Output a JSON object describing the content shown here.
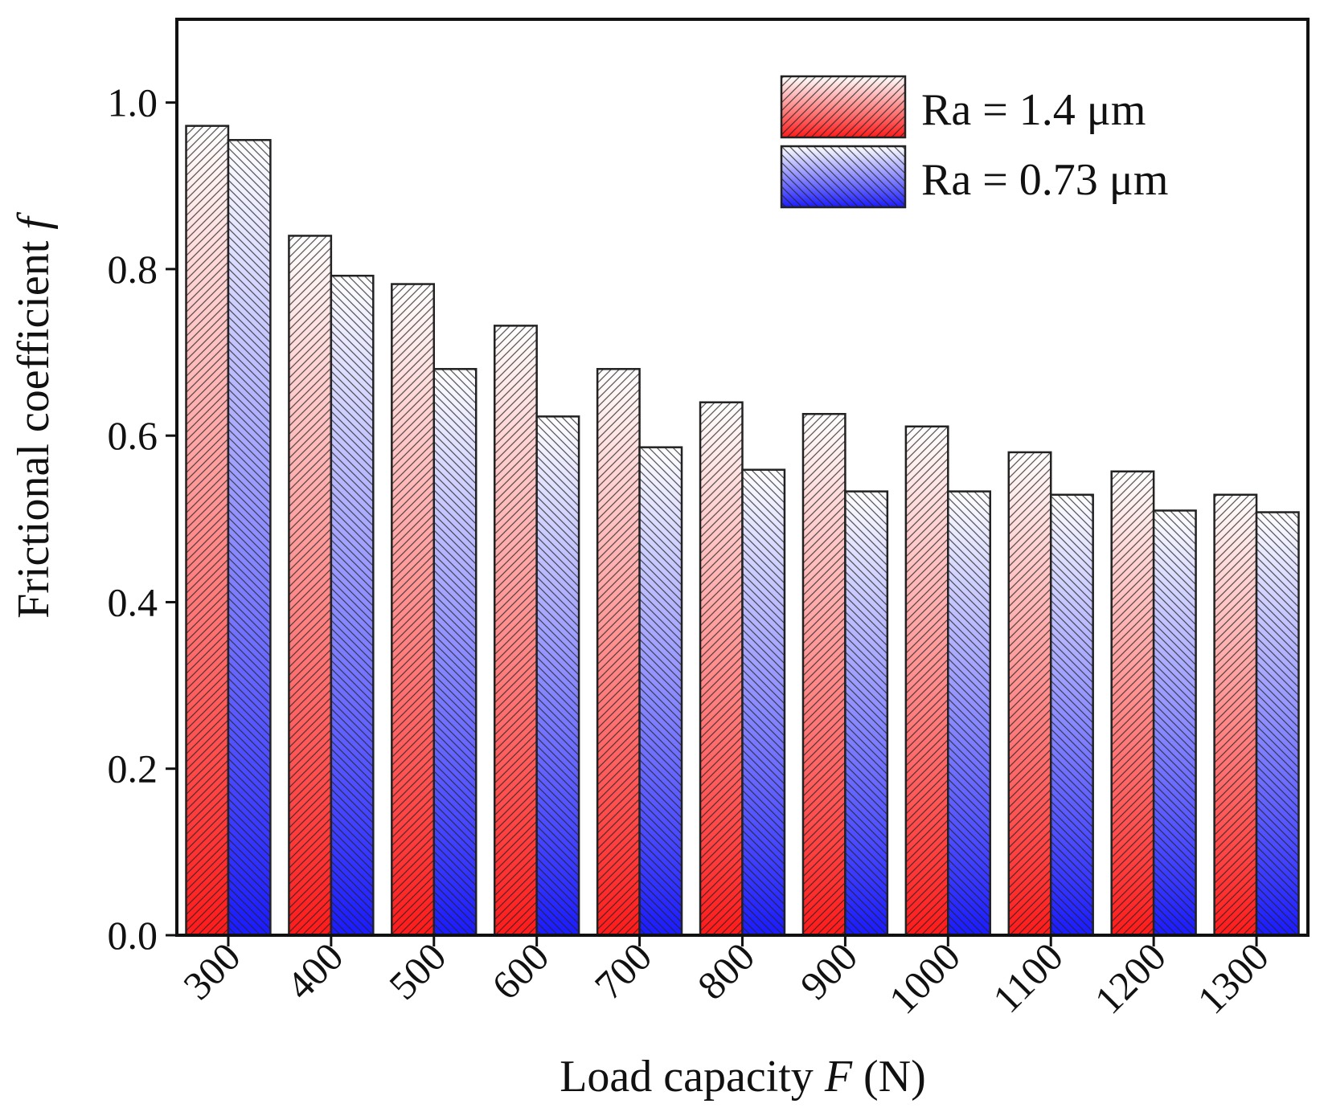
{
  "chart_data": {
    "type": "bar",
    "title": "",
    "xlabel": {
      "prefix": "Load capacity ",
      "symbol": "F",
      "suffix": " (N)"
    },
    "ylabel": {
      "text": "Frictional coefficient ",
      "symbol": "f"
    },
    "categories": [
      "300",
      "400",
      "500",
      "600",
      "700",
      "800",
      "900",
      "1000",
      "1100",
      "1200",
      "1300"
    ],
    "ylim": [
      0,
      1.1
    ],
    "yticks": [
      "0.0",
      "0.2",
      "0.4",
      "0.6",
      "0.8",
      "1.0"
    ],
    "series": [
      {
        "name": "Ra = 1.4 μm",
        "color": "#ff1a1a",
        "values": [
          0.972,
          0.84,
          0.782,
          0.732,
          0.68,
          0.64,
          0.626,
          0.611,
          0.58,
          0.557,
          0.529
        ]
      },
      {
        "name": "Ra = 0.73 μm",
        "color": "#1a1aff",
        "values": [
          0.955,
          0.792,
          0.68,
          0.623,
          0.586,
          0.559,
          0.533,
          0.533,
          0.529,
          0.51,
          0.508
        ]
      }
    ],
    "legend_position": "top-right",
    "grid": false
  }
}
